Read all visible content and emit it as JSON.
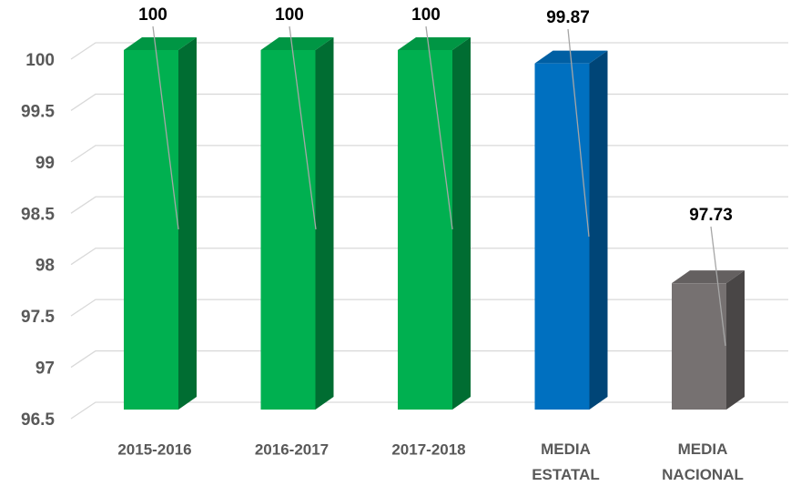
{
  "chart_data": {
    "type": "bar3d",
    "categories": [
      "2015-2016",
      "2016-2017",
      "2017-2018",
      "MEDIA ESTATAL",
      "MEDIA NACIONAL"
    ],
    "values": [
      100,
      100,
      100,
      99.87,
      97.73
    ],
    "colors": [
      "#00b050",
      "#00b050",
      "#00b050",
      "#0070c0",
      "#767171"
    ],
    "ylim": [
      96.5,
      100
    ],
    "yticks": [
      96.5,
      97,
      97.5,
      98,
      98.5,
      99,
      99.5,
      100
    ],
    "grid": true
  }
}
